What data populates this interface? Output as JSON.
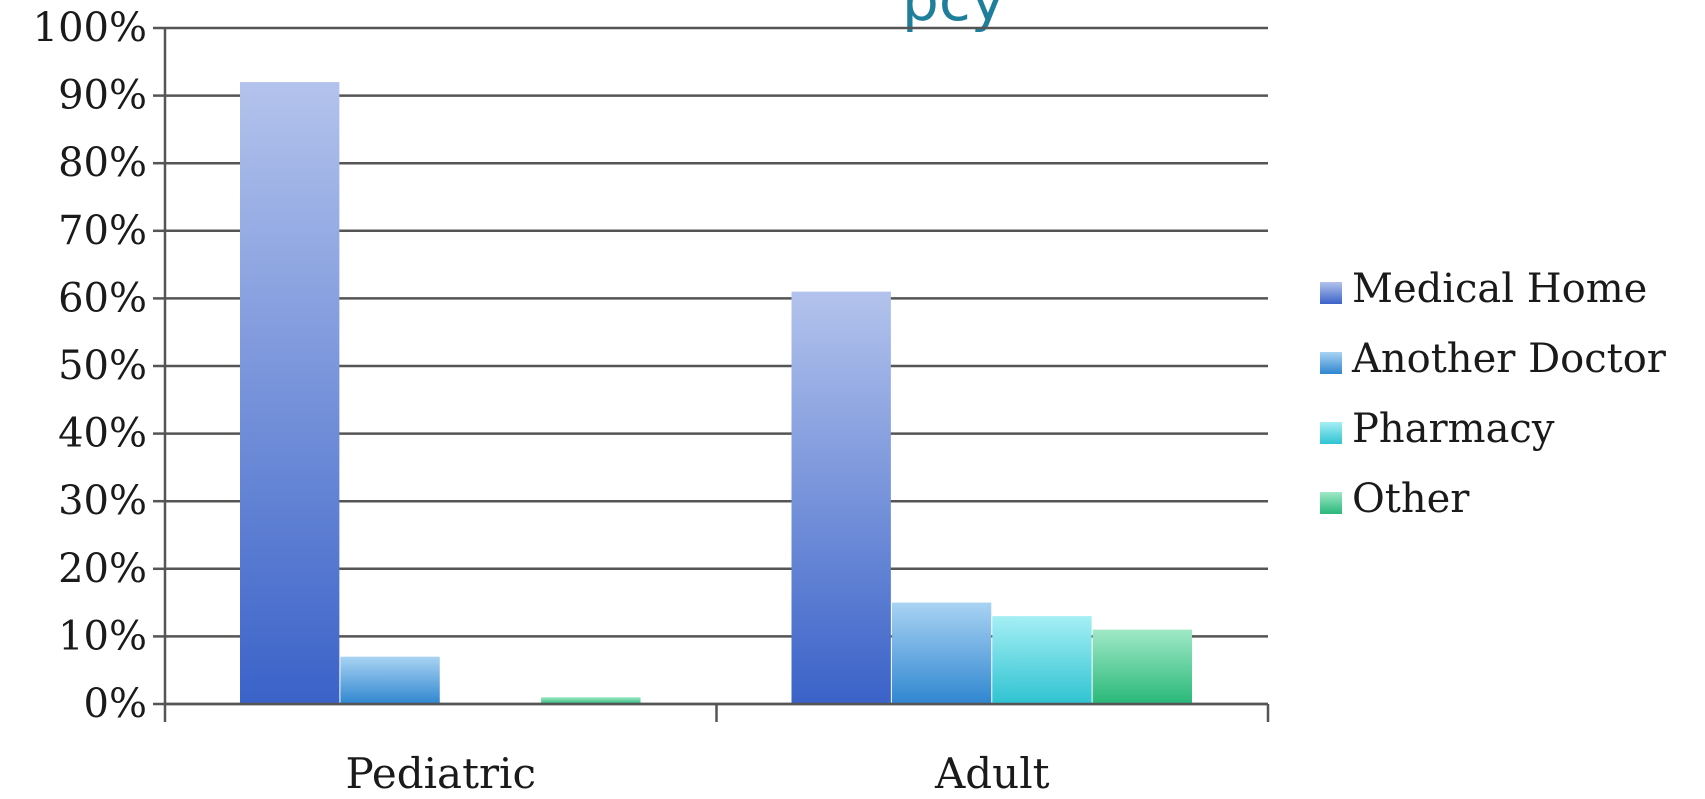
{
  "chart_data": {
    "type": "bar",
    "title_visible_fragment": "pcy",
    "categories": [
      "Pediatric",
      "Adult"
    ],
    "series": [
      {
        "name": "Medical Home",
        "values": [
          92,
          61
        ],
        "color": "#3a62c8",
        "color_light": "#b3c3ec"
      },
      {
        "name": "Another Doctor",
        "values": [
          7,
          15
        ],
        "color": "#2f86d0",
        "color_light": "#a9d3f3"
      },
      {
        "name": "Pharmacy",
        "values": [
          0,
          13
        ],
        "color": "#2fc3d2",
        "color_light": "#a5eff4"
      },
      {
        "name": "Other",
        "values": [
          1,
          11
        ],
        "color": "#29b879",
        "color_light": "#9fe8c6"
      }
    ],
    "ylim": [
      0,
      100
    ],
    "yticks": [
      "0%",
      "10%",
      "20%",
      "30%",
      "40%",
      "50%",
      "60%",
      "70%",
      "80%",
      "90%",
      "100%"
    ],
    "grid": true,
    "legend_position": "right"
  }
}
